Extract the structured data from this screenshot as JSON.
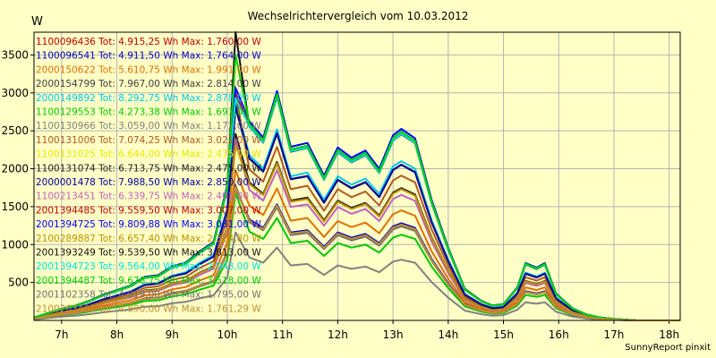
{
  "title": "Wechselrichtervergleich vom 10.03.2012",
  "y_unit": "W",
  "footer": "SunnyReport pinxit",
  "chart_data": {
    "type": "line",
    "title": "Wechselrichtervergleich vom 10.03.2012",
    "ylabel": "W",
    "xlabel": "",
    "xlim": [
      6.5,
      18.2
    ],
    "ylim": [
      0,
      3800
    ],
    "x_ticks": [
      {
        "value": 7,
        "label": "7h"
      },
      {
        "value": 8,
        "label": "8h"
      },
      {
        "value": 9,
        "label": "9h"
      },
      {
        "value": 10,
        "label": "10h"
      },
      {
        "value": 11,
        "label": "11h"
      },
      {
        "value": 12,
        "label": "12h"
      },
      {
        "value": 13,
        "label": "13h"
      },
      {
        "value": 14,
        "label": "14h"
      },
      {
        "value": 15,
        "label": "15h"
      },
      {
        "value": 16,
        "label": "16h"
      },
      {
        "value": 17,
        "label": "17h"
      },
      {
        "value": 18,
        "label": "18h"
      }
    ],
    "y_ticks": [
      500,
      1000,
      1500,
      2000,
      2500,
      3000,
      3500
    ],
    "grid": true,
    "legend_position": "top-left",
    "x": [
      6.5,
      7.0,
      7.25,
      7.5,
      7.75,
      8.0,
      8.25,
      8.5,
      8.75,
      9.0,
      9.25,
      9.5,
      9.75,
      10.0,
      10.15,
      10.4,
      10.65,
      10.9,
      11.15,
      11.45,
      11.75,
      12.0,
      12.25,
      12.5,
      12.75,
      13.0,
      13.15,
      13.4,
      13.7,
      14.0,
      14.3,
      14.6,
      14.8,
      15.0,
      15.25,
      15.4,
      15.6,
      15.75,
      15.95,
      16.25,
      16.5,
      16.75,
      17.0,
      17.4,
      17.75,
      18.2
    ],
    "series": [
      {
        "label": "1100096436 Tot: 4.915,25 Wh Max: 1.760,00 W",
        "color": "#c00000",
        "values": [
          20,
          80,
          100,
          130,
          170,
          200,
          230,
          290,
          300,
          360,
          390,
          460,
          520,
          900,
          1740,
          1320,
          1210,
          1520,
          1150,
          1180,
          960,
          1150,
          1080,
          1130,
          1010,
          1230,
          1270,
          1210,
          800,
          480,
          210,
          130,
          100,
          110,
          220,
          380,
          350,
          380,
          180,
          80,
          40,
          20,
          10,
          0,
          0,
          0
        ]
      },
      {
        "label": "1100096541 Tot: 4.911,50 Wh Max: 1.764,00 W",
        "color": "#0000c8",
        "values": [
          20,
          80,
          100,
          130,
          170,
          200,
          230,
          290,
          300,
          360,
          390,
          460,
          520,
          900,
          1750,
          1330,
          1220,
          1530,
          1160,
          1190,
          970,
          1160,
          1090,
          1140,
          1020,
          1240,
          1280,
          1220,
          810,
          490,
          215,
          135,
          102,
          112,
          225,
          385,
          355,
          385,
          185,
          82,
          41,
          20,
          10,
          0,
          0,
          0
        ]
      },
      {
        "label": "2000150622 Tot: 5.610,75 Wh Max: 1.991,00 W",
        "color": "#e07000",
        "values": [
          22,
          90,
          115,
          150,
          195,
          230,
          265,
          330,
          345,
          410,
          440,
          525,
          595,
          1030,
          1980,
          1510,
          1390,
          1740,
          1315,
          1350,
          1100,
          1310,
          1230,
          1290,
          1150,
          1400,
          1450,
          1380,
          910,
          550,
          240,
          150,
          115,
          125,
          250,
          435,
          400,
          435,
          205,
          92,
          46,
          23,
          12,
          0,
          0,
          0
        ]
      },
      {
        "label": "2000154799 Tot: 7.967,00 Wh Max: 2.814,00 W",
        "color": "#404040",
        "values": [
          32,
          125,
          160,
          210,
          275,
          325,
          375,
          465,
          485,
          580,
          620,
          740,
          840,
          1450,
          2800,
          2130,
          1960,
          2460,
          1860,
          1900,
          1550,
          1850,
          1740,
          1820,
          1625,
          1980,
          2050,
          1950,
          1290,
          780,
          340,
          210,
          160,
          175,
          355,
          615,
          565,
          615,
          290,
          130,
          65,
          32,
          16,
          0,
          0,
          0
        ]
      },
      {
        "label": "2000149892 Tot: 8.292,75 Wh Max: 2.878,00 W",
        "color": "#00c8e8",
        "values": [
          33,
          128,
          165,
          215,
          280,
          330,
          385,
          475,
          495,
          590,
          635,
          760,
          860,
          1480,
          2860,
          2180,
          2000,
          2520,
          1900,
          1950,
          1590,
          1900,
          1790,
          1870,
          1670,
          2030,
          2100,
          2000,
          1320,
          800,
          350,
          215,
          165,
          180,
          365,
          630,
          580,
          630,
          300,
          135,
          66,
          33,
          16,
          0,
          0,
          0
        ]
      },
      {
        "label": "1100129553 Tot: 4.273,38 Wh Max: 1.693,00 W",
        "color": "#00c800",
        "values": [
          18,
          70,
          88,
          115,
          150,
          175,
          205,
          255,
          265,
          315,
          345,
          405,
          460,
          800,
          1680,
          1170,
          1075,
          1350,
          1020,
          1050,
          850,
          1020,
          960,
          1000,
          895,
          1090,
          1130,
          1075,
          710,
          425,
          185,
          115,
          88,
          98,
          195,
          335,
          310,
          335,
          160,
          70,
          35,
          18,
          9,
          0,
          0,
          0
        ]
      },
      {
        "label": "1100130966 Tot: 3.059,00 Wh Max: 1.172,00 W",
        "color": "#808080",
        "values": [
          12,
          50,
          62,
          82,
          106,
          125,
          145,
          180,
          188,
          225,
          245,
          290,
          330,
          570,
          1160,
          830,
          760,
          960,
          725,
          745,
          600,
          725,
          680,
          710,
          635,
          775,
          800,
          760,
          505,
          300,
          130,
          82,
          62,
          70,
          140,
          240,
          220,
          240,
          115,
          50,
          25,
          12,
          6,
          0,
          0,
          0
        ]
      },
      {
        "label": "1100131006 Tot: 7.074,25 Wh Max: 3.021,00 W",
        "color": "#b05a20",
        "values": [
          30,
          118,
          150,
          195,
          255,
          300,
          345,
          430,
          450,
          535,
          575,
          690,
          780,
          1350,
          3000,
          1990,
          1830,
          2290,
          1730,
          1775,
          1445,
          1730,
          1625,
          1700,
          1515,
          1845,
          1910,
          1820,
          1200,
          725,
          315,
          195,
          150,
          165,
          330,
          570,
          525,
          570,
          270,
          120,
          60,
          30,
          15,
          0,
          0,
          0
        ]
      },
      {
        "label": "1100131025 Tot: 6.644,00 Wh Max: 2.475,00 W",
        "color": "#e8e800",
        "values": [
          27,
          106,
          135,
          176,
          230,
          270,
          312,
          390,
          405,
          485,
          520,
          625,
          705,
          1220,
          2460,
          1800,
          1655,
          2070,
          1565,
          1600,
          1305,
          1565,
          1470,
          1535,
          1370,
          1670,
          1730,
          1645,
          1085,
          655,
          285,
          176,
          135,
          148,
          300,
          515,
          475,
          515,
          245,
          108,
          54,
          27,
          14,
          0,
          0,
          0
        ]
      },
      {
        "label": "1100131074 Tot: 6.713,75 Wh Max: 2.475,00 W",
        "color": "#202020",
        "values": [
          27,
          108,
          137,
          178,
          233,
          273,
          315,
          395,
          410,
          490,
          525,
          630,
          712,
          1230,
          2460,
          1820,
          1670,
          2090,
          1580,
          1620,
          1320,
          1580,
          1485,
          1550,
          1385,
          1685,
          1745,
          1660,
          1095,
          660,
          288,
          178,
          137,
          150,
          303,
          520,
          480,
          520,
          248,
          109,
          55,
          27,
          14,
          0,
          0,
          0
        ]
      },
      {
        "label": "2000001478 Tot: 7.988,50 Wh Max: 2.850,00 W",
        "color": "#0000a0",
        "values": [
          32,
          126,
          161,
          211,
          276,
          326,
          376,
          466,
          486,
          581,
          621,
          741,
          841,
          1455,
          2835,
          2140,
          1965,
          2470,
          1865,
          1905,
          1555,
          1855,
          1745,
          1825,
          1630,
          1985,
          2055,
          1955,
          1295,
          782,
          341,
          211,
          161,
          176,
          356,
          617,
          567,
          617,
          291,
          131,
          65,
          32,
          16,
          0,
          0,
          0
        ]
      },
      {
        "label": "1100213451 Tot: 6.339,75 Wh Max: 2.401,00 W",
        "color": "#c060c0",
        "values": [
          26,
          102,
          130,
          170,
          222,
          262,
          302,
          375,
          390,
          465,
          500,
          600,
          680,
          1175,
          2390,
          1720,
          1580,
          1980,
          1495,
          1530,
          1250,
          1495,
          1405,
          1470,
          1310,
          1600,
          1655,
          1575,
          1040,
          625,
          272,
          170,
          130,
          142,
          287,
          495,
          455,
          495,
          235,
          104,
          52,
          26,
          13,
          0,
          0,
          0
        ]
      },
      {
        "label": "2001394485 Tot: 9.559,50 Wh Max: 3.007,00 W",
        "color": "#c00000",
        "values": [
          38,
          150,
          192,
          252,
          330,
          390,
          450,
          558,
          582,
          696,
          744,
          888,
          1008,
          1740,
          2990,
          2560,
          2350,
          2950,
          2230,
          2280,
          1860,
          2220,
          2090,
          2185,
          1950,
          2375,
          2460,
          2340,
          1550,
          935,
          408,
          252,
          192,
          210,
          426,
          738,
          678,
          738,
          348,
          156,
          78,
          38,
          19,
          0,
          0,
          0
        ]
      },
      {
        "label": "2001394725 Tot: 9.809,88 Wh Max: 3.081,00 W",
        "color": "#0000ff",
        "values": [
          39,
          154,
          197,
          259,
          339,
          400,
          462,
          573,
          597,
          714,
          763,
          911,
          1034,
          1785,
          3065,
          2625,
          2410,
          3025,
          2290,
          2340,
          1910,
          2280,
          2145,
          2240,
          2000,
          2440,
          2525,
          2400,
          1590,
          960,
          418,
          259,
          197,
          215,
          437,
          757,
          696,
          757,
          357,
          160,
          80,
          39,
          20,
          0,
          0,
          0
        ]
      },
      {
        "label": "2100289887 Tot: 6.657,40 Wh Max: 2.324,80 W",
        "color": "#c09000",
        "values": [
          27,
          106,
          135,
          176,
          230,
          270,
          312,
          390,
          405,
          485,
          520,
          625,
          705,
          1220,
          2310,
          1800,
          1655,
          2070,
          1565,
          1600,
          1305,
          1565,
          1470,
          1535,
          1370,
          1670,
          1730,
          1645,
          1085,
          655,
          285,
          176,
          135,
          148,
          300,
          515,
          475,
          515,
          245,
          108,
          54,
          27,
          14,
          0,
          0,
          0
        ]
      },
      {
        "label": "2001393249 Tot: 9.539,50 Wh Max: 3.813,00 W",
        "color": "#101010",
        "values": [
          38,
          149,
          191,
          251,
          329,
          389,
          449,
          557,
          581,
          695,
          743,
          887,
          1007,
          1738,
          3800,
          2555,
          2345,
          2945,
          2225,
          2275,
          1855,
          2215,
          2085,
          2180,
          1945,
          2370,
          2455,
          2335,
          1545,
          932,
          407,
          251,
          191,
          209,
          425,
          736,
          676,
          736,
          347,
          155,
          77,
          38,
          19,
          0,
          0,
          0
        ]
      },
      {
        "label": "2001394723 Tot: 9.564,00 Wh Max: 2.943,00 W",
        "color": "#00e0e0",
        "values": [
          38,
          150,
          192,
          252,
          330,
          390,
          450,
          558,
          582,
          696,
          744,
          888,
          1008,
          1740,
          2930,
          2560,
          2350,
          2950,
          2230,
          2280,
          1860,
          2220,
          2090,
          2185,
          1950,
          2375,
          2460,
          2340,
          1550,
          935,
          408,
          252,
          192,
          210,
          426,
          738,
          678,
          738,
          348,
          156,
          78,
          38,
          19,
          0,
          0,
          0
        ]
      },
      {
        "label": "2001394487 Tot: 9.676,75 Wh Max: 3.518,00 W",
        "color": "#00d000",
        "values": [
          39,
          152,
          195,
          255,
          334,
          395,
          456,
          565,
          589,
          704,
          753,
          899,
          1020,
          1760,
          3500,
          2590,
          2380,
          2985,
          2255,
          2305,
          1880,
          2245,
          2115,
          2210,
          1970,
          2405,
          2490,
          2365,
          1565,
          945,
          412,
          255,
          195,
          212,
          431,
          747,
          686,
          747,
          352,
          158,
          79,
          39,
          19,
          0,
          0,
          0
        ]
      },
      {
        "label": "2001102358 Tot: 4.819,00 Wh Max: 1.795,00 W",
        "color": "#707070",
        "values": [
          19,
          75,
          96,
          126,
          165,
          196,
          226,
          282,
          294,
          352,
          376,
          448,
          508,
          880,
          1780,
          1295,
          1190,
          1490,
          1125,
          1155,
          940,
          1125,
          1055,
          1105,
          985,
          1200,
          1240,
          1180,
          785,
          470,
          205,
          127,
          97,
          107,
          215,
          372,
          342,
          372,
          175,
          78,
          39,
          19,
          10,
          0,
          0,
          0
        ]
      },
      {
        "label": "2100263461 Tot: 4.890,00 Wh Max: 1.761,29 W",
        "color": "#c09030",
        "values": [
          20,
          78,
          99,
          130,
          170,
          200,
          230,
          288,
          300,
          358,
          388,
          458,
          518,
          895,
          1750,
          1315,
          1205,
          1515,
          1145,
          1175,
          955,
          1145,
          1075,
          1125,
          1005,
          1225,
          1265,
          1205,
          795,
          478,
          209,
          129,
          99,
          109,
          219,
          378,
          348,
          378,
          178,
          80,
          40,
          20,
          10,
          0,
          0,
          0
        ]
      }
    ]
  }
}
